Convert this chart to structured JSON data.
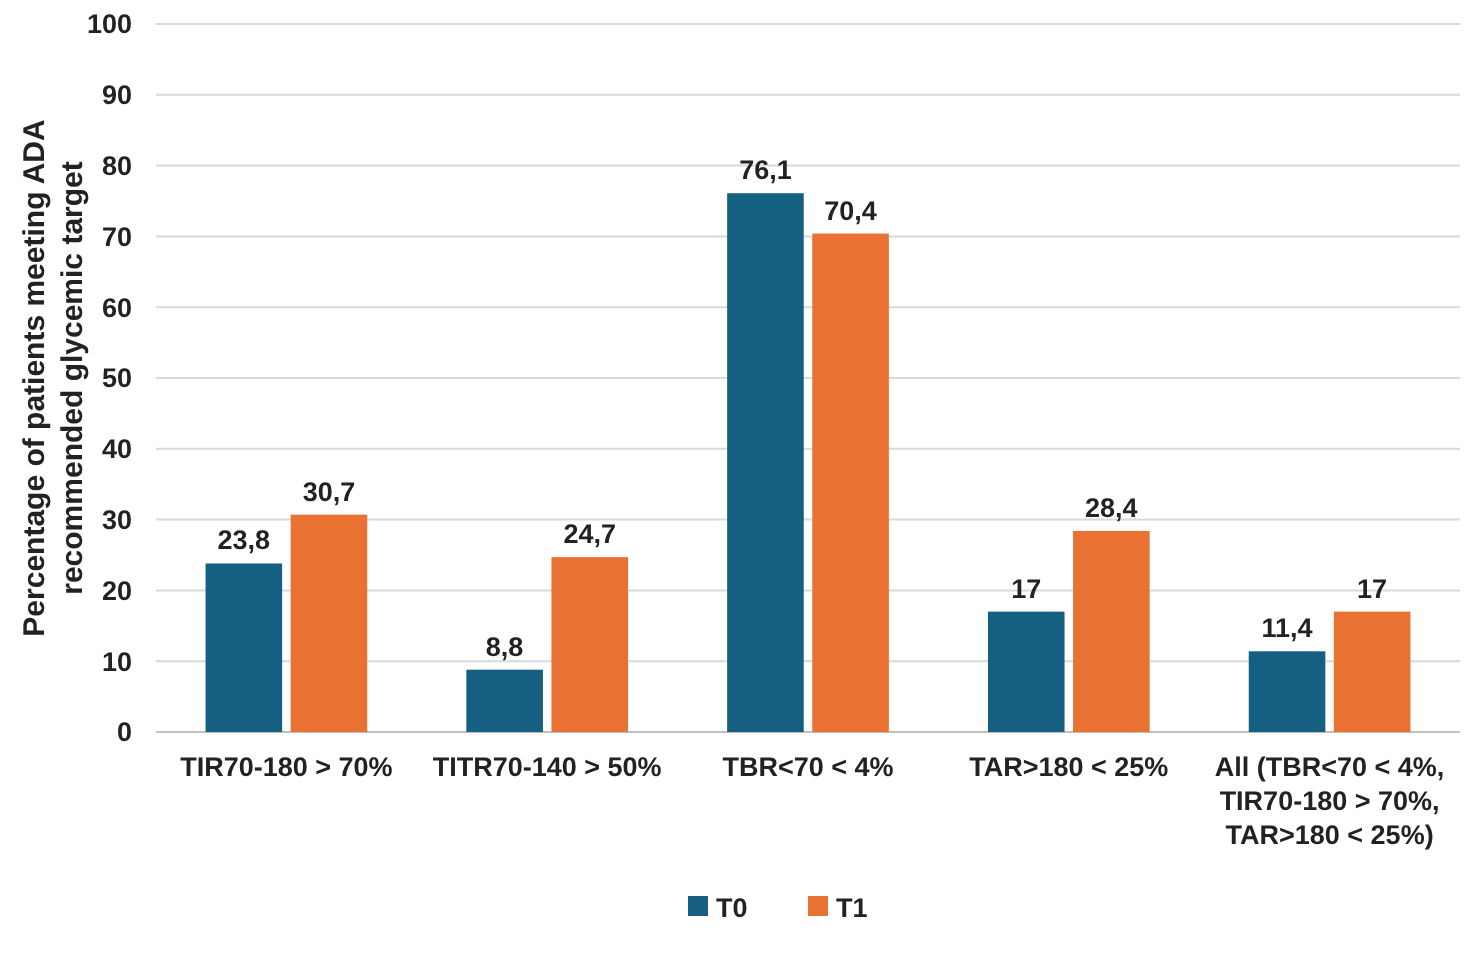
{
  "chart_data": {
    "type": "bar",
    "ylabel": "Percentage of patients meeting ADA\nrecommended glycemic target",
    "categories": [
      "TIR70-180 > 70%",
      "TITR70-140 > 50%",
      "TBR<70 < 4%",
      "TAR>180 < 25%",
      "All (TBR<70 < 4%,\nTIR70-180 > 70%,\nTAR>180 < 25%)"
    ],
    "series": [
      {
        "name": "T0",
        "color": "#156082",
        "values": [
          23.8,
          8.8,
          76.1,
          17,
          11.4
        ],
        "value_labels": [
          "23,8",
          "8,8",
          "76,1",
          "17",
          "11,4"
        ]
      },
      {
        "name": "T1",
        "color": "#e97132",
        "values": [
          30.7,
          24.7,
          70.4,
          28.4,
          17
        ],
        "value_labels": [
          "30,7",
          "24,7",
          "70,4",
          "28,4",
          "17"
        ]
      }
    ],
    "ylim": [
      0,
      100
    ],
    "yticks": [
      0,
      10,
      20,
      30,
      40,
      50,
      60,
      70,
      80,
      90,
      100
    ],
    "grid": "y",
    "legend": "bottom"
  }
}
